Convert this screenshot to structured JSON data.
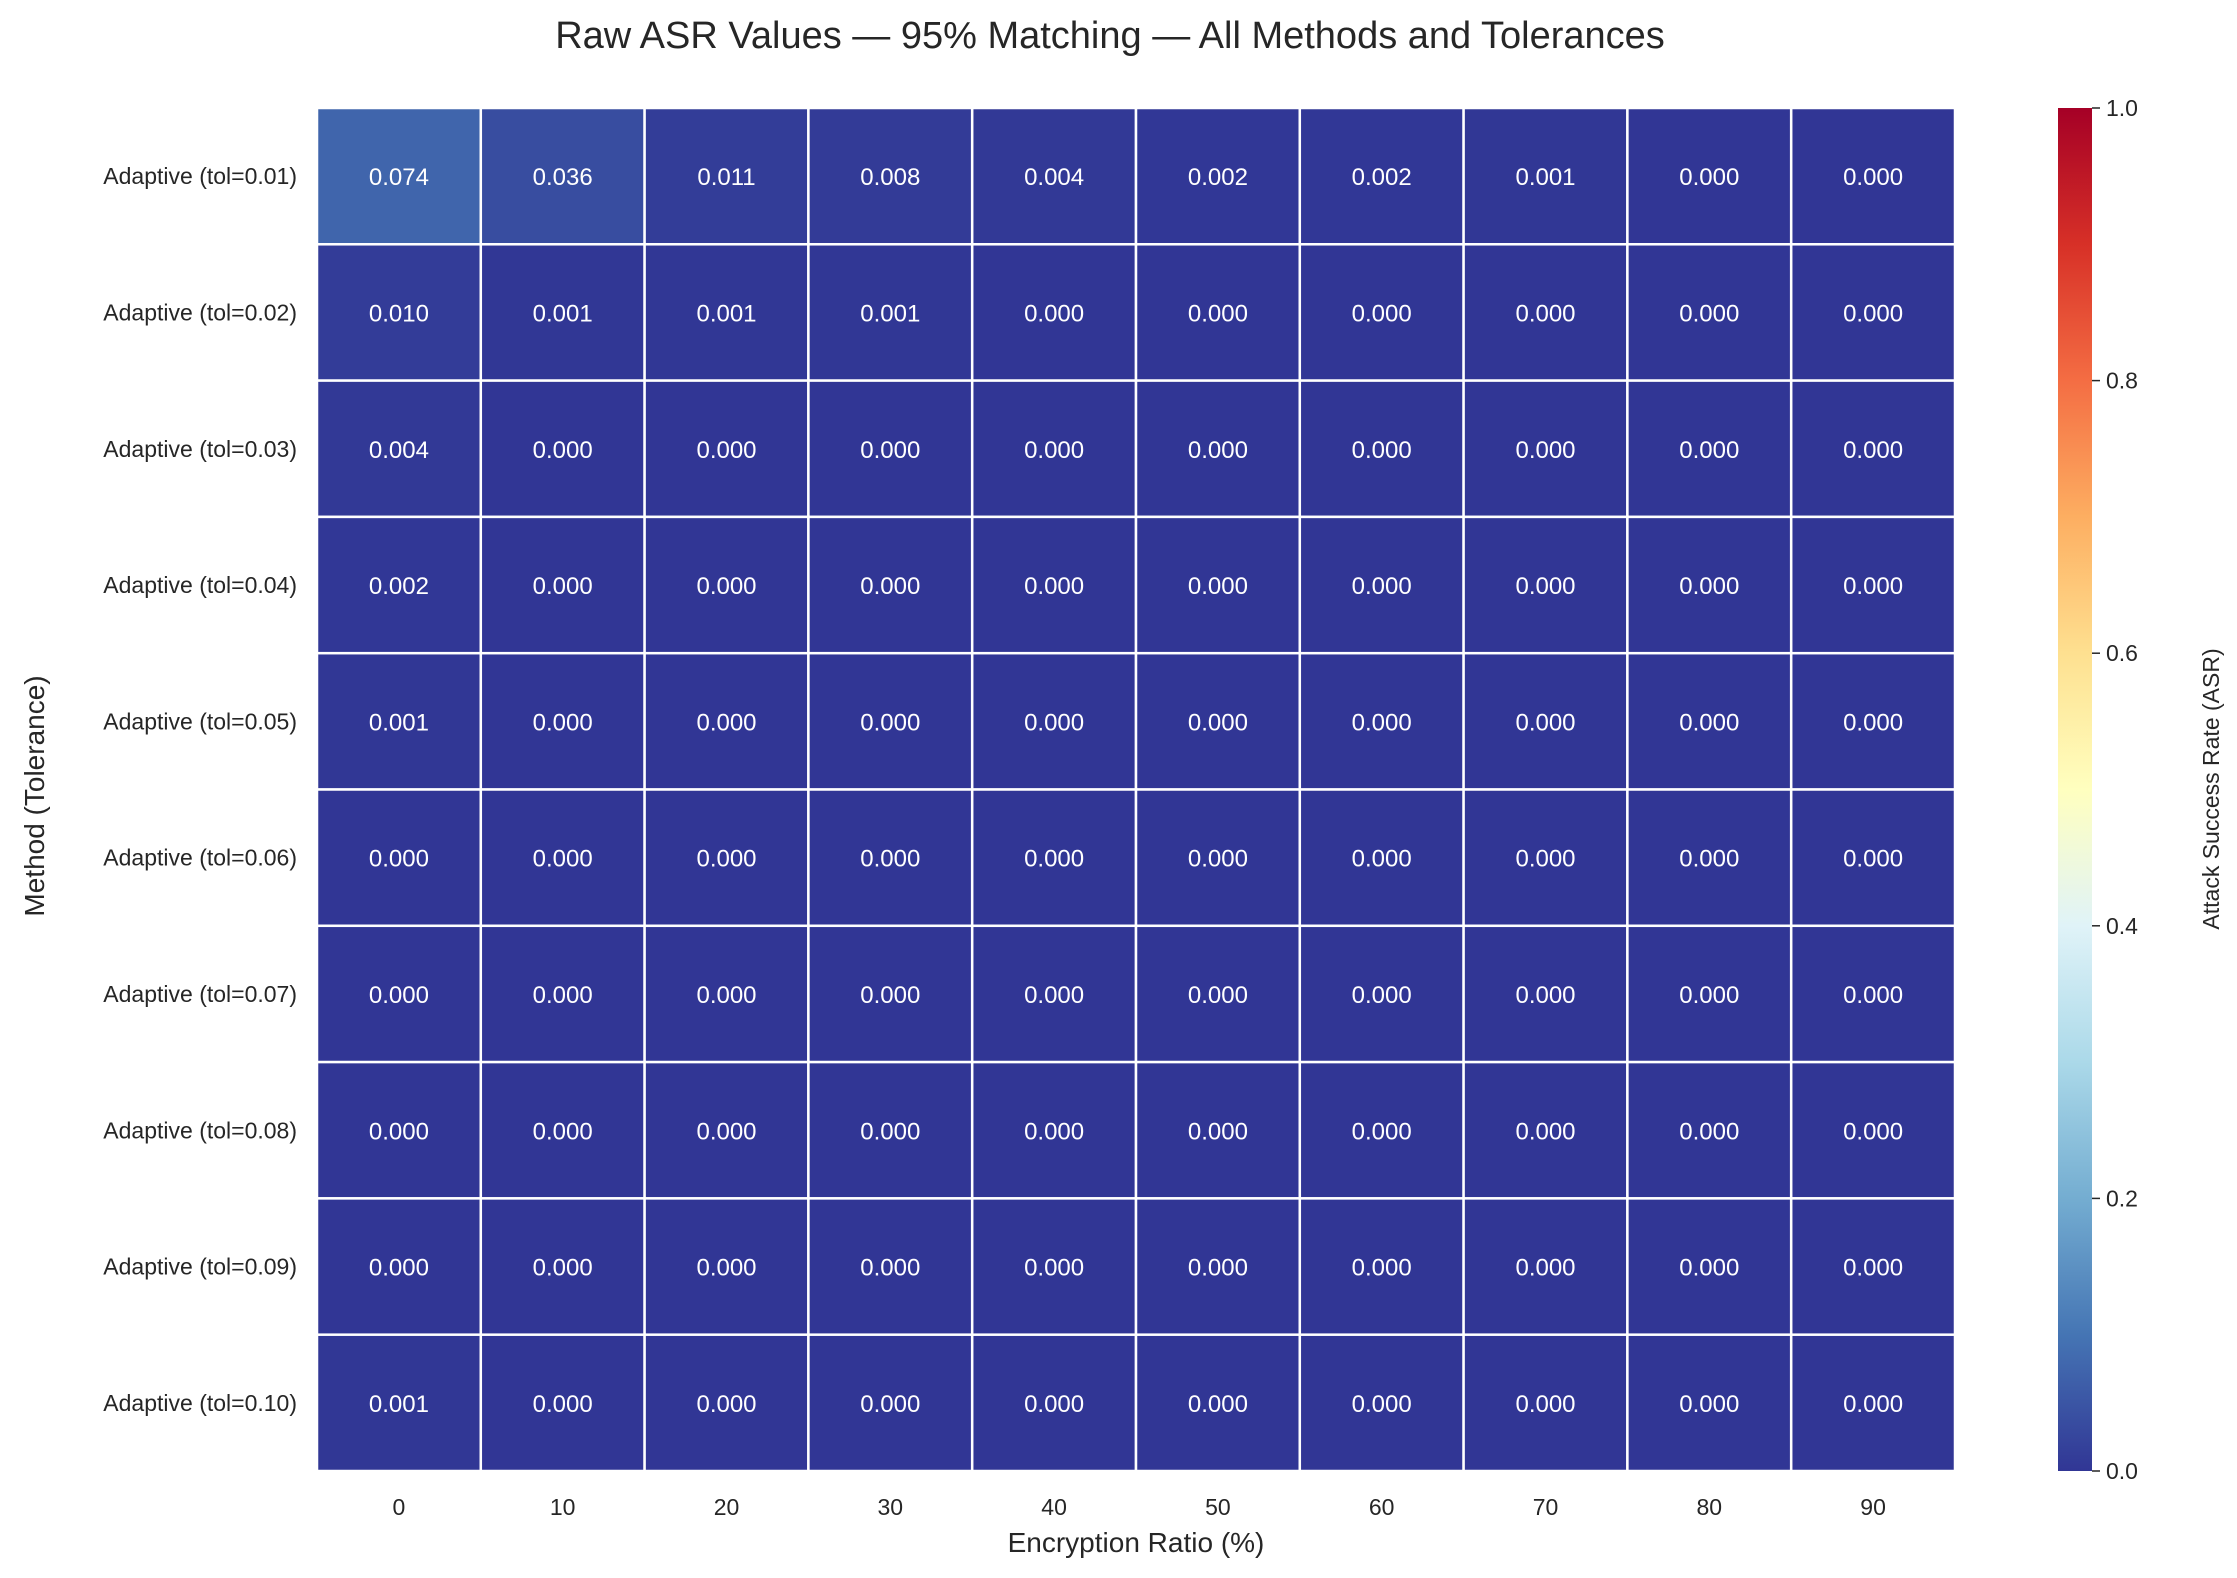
{
  "chart_data": {
    "type": "heatmap",
    "title": "Raw ASR Values — 95% Matching — All Methods and Tolerances",
    "xlabel": "Encryption Ratio (%)",
    "ylabel": "Method (Tolerance)",
    "x": [
      "0",
      "10",
      "20",
      "30",
      "40",
      "50",
      "60",
      "70",
      "80",
      "90"
    ],
    "y": [
      "Adaptive (tol=0.01)",
      "Adaptive (tol=0.02)",
      "Adaptive (tol=0.03)",
      "Adaptive (tol=0.04)",
      "Adaptive (tol=0.05)",
      "Adaptive (tol=0.06)",
      "Adaptive (tol=0.07)",
      "Adaptive (tol=0.08)",
      "Adaptive (tol=0.09)",
      "Adaptive (tol=0.10)"
    ],
    "values": [
      [
        0.074,
        0.036,
        0.011,
        0.008,
        0.004,
        0.002,
        0.002,
        0.001,
        0.0,
        0.0
      ],
      [
        0.01,
        0.001,
        0.001,
        0.001,
        0.0,
        0.0,
        0.0,
        0.0,
        0.0,
        0.0
      ],
      [
        0.004,
        0.0,
        0.0,
        0.0,
        0.0,
        0.0,
        0.0,
        0.0,
        0.0,
        0.0
      ],
      [
        0.002,
        0.0,
        0.0,
        0.0,
        0.0,
        0.0,
        0.0,
        0.0,
        0.0,
        0.0
      ],
      [
        0.001,
        0.0,
        0.0,
        0.0,
        0.0,
        0.0,
        0.0,
        0.0,
        0.0,
        0.0
      ],
      [
        0.0,
        0.0,
        0.0,
        0.0,
        0.0,
        0.0,
        0.0,
        0.0,
        0.0,
        0.0
      ],
      [
        0.0,
        0.0,
        0.0,
        0.0,
        0.0,
        0.0,
        0.0,
        0.0,
        0.0,
        0.0
      ],
      [
        0.0,
        0.0,
        0.0,
        0.0,
        0.0,
        0.0,
        0.0,
        0.0,
        0.0,
        0.0
      ],
      [
        0.0,
        0.0,
        0.0,
        0.0,
        0.0,
        0.0,
        0.0,
        0.0,
        0.0,
        0.0
      ],
      [
        0.001,
        0.0,
        0.0,
        0.0,
        0.0,
        0.0,
        0.0,
        0.0,
        0.0,
        0.0
      ]
    ],
    "value_format_decimals": 3,
    "colorbar": {
      "label": "Attack Success Rate (ASR)",
      "range": [
        0.0,
        1.0
      ],
      "ticks": [
        "0.0",
        "0.2",
        "0.4",
        "0.6",
        "0.8",
        "1.0"
      ],
      "colormap": "RdYlBu_r"
    },
    "colormap_stops": [
      "#313695",
      "#4575b4",
      "#74add1",
      "#abd9e9",
      "#e0f3f8",
      "#ffffbf",
      "#fee090",
      "#fdae61",
      "#f46d43",
      "#d73027",
      "#a50026"
    ],
    "cell_text_color": "#ffffff",
    "grid_line_color": "#ffffff"
  }
}
